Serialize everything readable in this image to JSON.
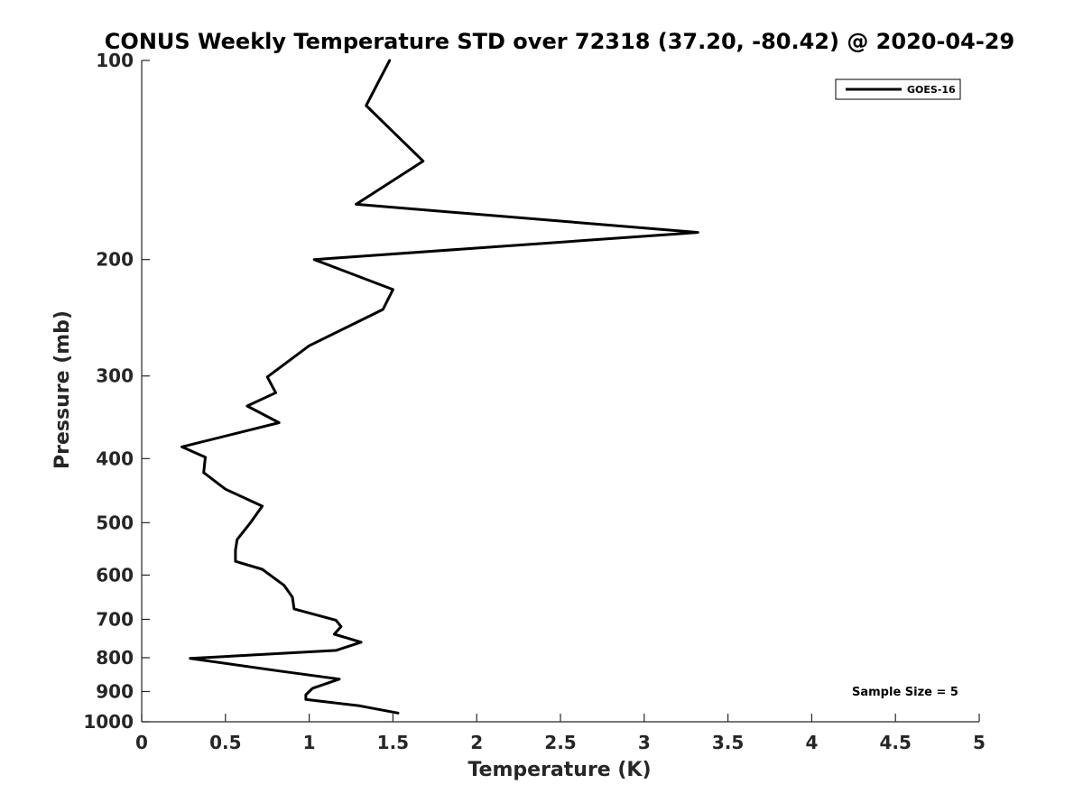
{
  "chart_data": {
    "type": "line",
    "title": "CONUS Weekly Temperature STD over 72318 (37.20, -80.42) @ 2020-04-29",
    "xlabel": "Temperature (K)",
    "ylabel": "Pressure (mb)",
    "xlim": [
      0,
      5
    ],
    "ylim": [
      100,
      1000
    ],
    "y_scale": "log",
    "y_reversed": true,
    "x_ticks": [
      "0",
      "0.5",
      "1",
      "1.5",
      "2",
      "2.5",
      "3",
      "3.5",
      "4",
      "4.5",
      "5"
    ],
    "y_ticks": [
      "100",
      "200",
      "300",
      "400",
      "500",
      "600",
      "700",
      "800",
      "900",
      "1000"
    ],
    "grid": false,
    "legend": {
      "placement": "top-right",
      "entries": [
        "GOES-16"
      ]
    },
    "annotation": "Sample Size = 5",
    "series": [
      {
        "name": "GOES-16",
        "color": "#000000",
        "points": [
          [
            1.48,
            100
          ],
          [
            1.34,
            117
          ],
          [
            1.68,
            142
          ],
          [
            1.28,
            165
          ],
          [
            3.32,
            182
          ],
          [
            1.03,
            200
          ],
          [
            1.5,
            222
          ],
          [
            1.44,
            238
          ],
          [
            1.0,
            270
          ],
          [
            0.75,
            301
          ],
          [
            0.8,
            318
          ],
          [
            0.63,
            333
          ],
          [
            0.82,
            353
          ],
          [
            0.24,
            384
          ],
          [
            0.38,
            398
          ],
          [
            0.37,
            420
          ],
          [
            0.5,
            445
          ],
          [
            0.72,
            472
          ],
          [
            0.65,
            500
          ],
          [
            0.57,
            530
          ],
          [
            0.56,
            550
          ],
          [
            0.56,
            572
          ],
          [
            0.72,
            588
          ],
          [
            0.85,
            622
          ],
          [
            0.9,
            648
          ],
          [
            0.91,
            675
          ],
          [
            1.16,
            702
          ],
          [
            1.19,
            718
          ],
          [
            1.15,
            737
          ],
          [
            1.31,
            758
          ],
          [
            1.16,
            780
          ],
          [
            0.29,
            802
          ],
          [
            0.82,
            838
          ],
          [
            1.18,
            862
          ],
          [
            1.02,
            890
          ],
          [
            0.98,
            910
          ],
          [
            0.98,
            925
          ],
          [
            1.3,
            946
          ],
          [
            1.53,
            970
          ]
        ]
      }
    ]
  }
}
